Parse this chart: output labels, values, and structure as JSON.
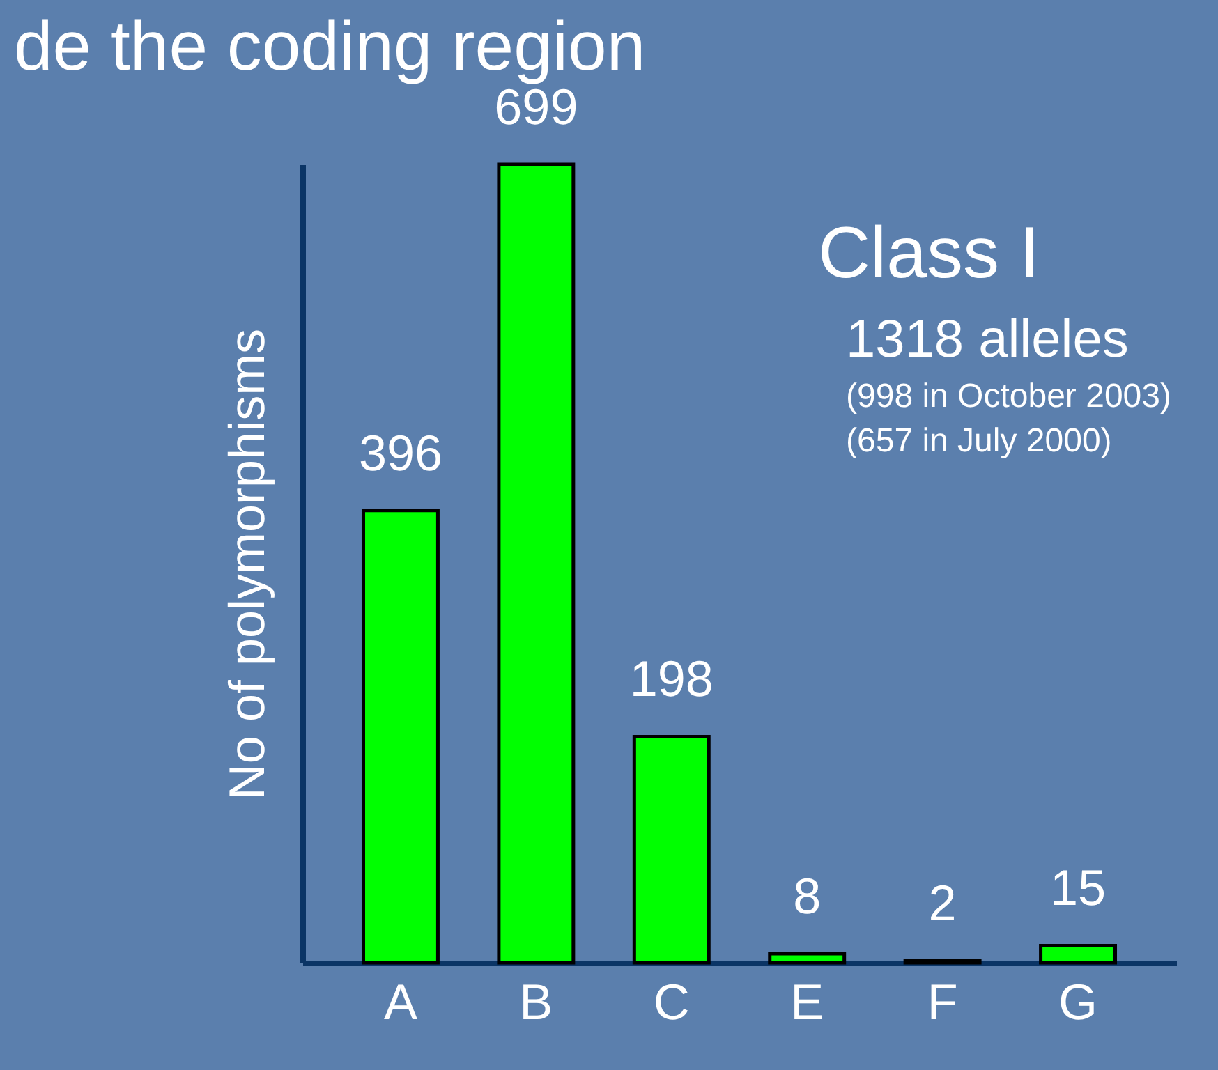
{
  "chart_data": {
    "type": "bar",
    "title": "de the coding region",
    "ylabel": "No of polymorphisms",
    "categories": [
      "A",
      "B",
      "C",
      "E",
      "F",
      "G"
    ],
    "values": [
      396,
      699,
      198,
      8,
      2,
      15
    ],
    "color": "#00ff00",
    "data_labels": true,
    "tick_labels": "x",
    "annotations": [
      "Class I",
      "1318 alleles",
      "(998 in October 2003)",
      "(657 in July 2000)"
    ]
  }
}
